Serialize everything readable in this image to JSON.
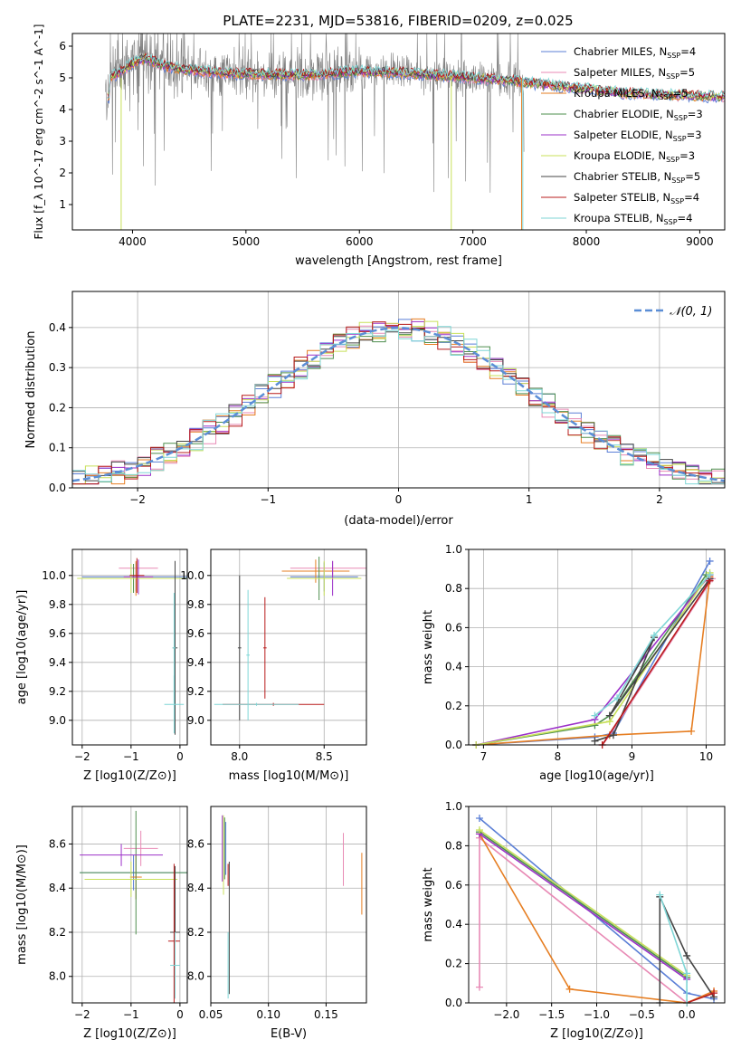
{
  "figure": {
    "title": "PLATE=2231, MJD=53816, FIBERID=0209, z=0.025"
  },
  "models": [
    {
      "name": "Chabrier MILES",
      "nssp": "4",
      "color": "#5b7fd6"
    },
    {
      "name": "Salpeter MILES",
      "nssp": "5",
      "color": "#e88ab5"
    },
    {
      "name": "Kroupa MILES",
      "nssp": "5",
      "color": "#e67e22"
    },
    {
      "name": "Chabrier ELODIE",
      "nssp": "3",
      "color": "#4e8f4e"
    },
    {
      "name": "Salpeter ELODIE",
      "nssp": "3",
      "color": "#9b30c8"
    },
    {
      "name": "Kroupa ELODIE",
      "nssp": "3",
      "color": "#c8e05a"
    },
    {
      "name": "Chabrier STELIB",
      "nssp": "5",
      "color": "#444444"
    },
    {
      "name": "Salpeter STELIB",
      "nssp": "4",
      "color": "#b81c1c"
    },
    {
      "name": "Kroupa STELIB",
      "nssp": "4",
      "color": "#7fd6d6"
    }
  ],
  "chart_data": [
    {
      "id": "spectrum",
      "type": "line",
      "xlabel": "wavelength [Angstrom, rest frame]",
      "ylabel": "Flux [f_λ 10^-17 erg cm^-2 s^-1 A^-1]",
      "xlim": [
        3470,
        9220
      ],
      "ylim": [
        0.2,
        6.4
      ],
      "xticks": [
        4000,
        5000,
        6000,
        7000,
        8000,
        9000
      ],
      "yticks": [
        1,
        2,
        3,
        4,
        5,
        6
      ],
      "data_color": "#808080",
      "data_range": [
        3760,
        7450
      ],
      "continuum": [
        [
          3800,
          5.0
        ],
        [
          3900,
          5.2
        ],
        [
          4000,
          5.45
        ],
        [
          4100,
          5.6
        ],
        [
          4200,
          5.5
        ],
        [
          4300,
          5.35
        ],
        [
          4500,
          5.25
        ],
        [
          4800,
          5.15
        ],
        [
          5200,
          5.1
        ],
        [
          5600,
          5.1
        ],
        [
          6000,
          5.2
        ],
        [
          6400,
          5.15
        ],
        [
          6800,
          5.05
        ],
        [
          7200,
          4.95
        ],
        [
          7600,
          4.8
        ],
        [
          8000,
          4.65
        ],
        [
          8400,
          4.5
        ],
        [
          8800,
          4.45
        ],
        [
          9200,
          4.4
        ]
      ],
      "legend_loc": "upper right",
      "grid": false
    },
    {
      "id": "residuals",
      "type": "histogram",
      "xlabel": "(data-model)/error",
      "ylabel": "Normed distribution",
      "xlim": [
        -2.5,
        2.5
      ],
      "ylim": [
        0,
        0.49
      ],
      "xticks": [
        -2,
        -1,
        0,
        1,
        2
      ],
      "yticks": [
        0.0,
        0.1,
        0.2,
        0.3,
        0.4
      ],
      "bin_width": 0.1,
      "reference": {
        "label": "𝒩(0, 1)",
        "mean": 0,
        "sigma": 1,
        "color": "#5b8ed6"
      },
      "legend_loc": "upper right",
      "grid": true
    },
    {
      "id": "age-vs-z",
      "type": "errorbar",
      "xlabel": "Z [log10(Z/Z⊙)]",
      "ylabel": "age [log10(age/yr)]",
      "xlim": [
        -2.2,
        0.15
      ],
      "ylim": [
        8.83,
        10.18
      ],
      "xticks": [
        -2,
        -1,
        0
      ],
      "yticks": [
        9.0,
        9.2,
        9.4,
        9.6,
        9.8,
        10.0
      ],
      "grid": true,
      "points": [
        {
          "model": 0,
          "x": -0.9,
          "y": 9.99,
          "xerr": 1.1,
          "yerr": 0.1
        },
        {
          "model": 1,
          "x": -0.85,
          "y": 10.05,
          "xerr": 0.4,
          "yerr": 0.05
        },
        {
          "model": 2,
          "x": -0.9,
          "y": 9.98,
          "xerr": 0.3,
          "yerr": 0.12
        },
        {
          "model": 3,
          "x": -0.95,
          "y": 9.98,
          "xerr": 1.15,
          "yerr": 0.1
        },
        {
          "model": 4,
          "x": -0.85,
          "y": 9.99,
          "xerr": 0.3,
          "yerr": 0.12
        },
        {
          "model": 5,
          "x": -1.0,
          "y": 9.98,
          "xerr": 1.1,
          "yerr": 0.1
        },
        {
          "model": 6,
          "x": -0.1,
          "y": 9.5,
          "xerr": 0.05,
          "yerr": 0.6
        },
        {
          "model": 7,
          "x": -0.88,
          "y": 10.0,
          "xerr": 0.15,
          "yerr": 0.12
        },
        {
          "model": 8,
          "x": -0.12,
          "y": 9.11,
          "xerr": 0.2,
          "yerr": 0.2
        },
        {
          "model": 8,
          "x": -0.12,
          "y": 9.5,
          "xerr": 0.03,
          "yerr": 0.38
        }
      ]
    },
    {
      "id": "age-vs-mass",
      "type": "errorbar",
      "xlabel": "mass [log10(M/M⊙)]",
      "ylabel": "",
      "xlim": [
        7.83,
        8.75
      ],
      "ylim": [
        8.83,
        10.18
      ],
      "xticks": [
        8.0,
        8.5
      ],
      "yticks": [
        9.0,
        9.2,
        9.4,
        9.6,
        9.8,
        10.0
      ],
      "grid": true,
      "points": [
        {
          "model": 0,
          "x": 8.5,
          "y": 9.99,
          "xerr": 0.2,
          "yerr": 0.1
        },
        {
          "model": 1,
          "x": 8.55,
          "y": 10.05,
          "xerr": 0.25,
          "yerr": 0.05
        },
        {
          "model": 2,
          "x": 8.45,
          "y": 10.03,
          "xerr": 0.2,
          "yerr": 0.08
        },
        {
          "model": 3,
          "x": 8.47,
          "y": 9.98,
          "xerr": 0.15,
          "yerr": 0.15
        },
        {
          "model": 4,
          "x": 8.55,
          "y": 9.98,
          "xerr": 0.12,
          "yerr": 0.12
        },
        {
          "model": 5,
          "x": 8.5,
          "y": 9.98,
          "xerr": 0.22,
          "yerr": 0.12
        },
        {
          "model": 6,
          "x": 8.0,
          "y": 9.5,
          "xerr": 0.01,
          "yerr": 0.5
        },
        {
          "model": 7,
          "x": 8.15,
          "y": 9.5,
          "xerr": 0.01,
          "yerr": 0.35
        },
        {
          "model": 7,
          "x": 8.2,
          "y": 9.11,
          "xerr": 0.3,
          "yerr": 0.01
        },
        {
          "model": 8,
          "x": 8.05,
          "y": 9.45,
          "xerr": 0.01,
          "yerr": 0.45
        },
        {
          "model": 8,
          "x": 8.1,
          "y": 9.11,
          "xerr": 0.25,
          "yerr": 0.01
        }
      ]
    },
    {
      "id": "weight-vs-age",
      "type": "line",
      "xlabel": "age [log10(age/yr)]",
      "ylabel": "mass weight",
      "xlim": [
        6.8,
        10.25
      ],
      "ylim": [
        0,
        1.0
      ],
      "xticks": [
        7,
        8,
        9,
        10
      ],
      "yticks": [
        0.0,
        0.2,
        0.4,
        0.6,
        0.8,
        1.0
      ],
      "grid": true,
      "series": [
        {
          "model": 0,
          "x": [
            6.9,
            8.5,
            8.75,
            10.05
          ],
          "y": [
            0.0,
            0.04,
            0.06,
            0.94
          ]
        },
        {
          "model": 1,
          "x": [
            8.6,
            8.7,
            10.08
          ],
          "y": [
            0.0,
            0.05,
            0.85
          ]
        },
        {
          "model": 2,
          "x": [
            6.9,
            8.7,
            9.8,
            10.05
          ],
          "y": [
            0.0,
            0.05,
            0.07,
            0.86
          ]
        },
        {
          "model": 3,
          "x": [
            6.9,
            8.5,
            8.7,
            10.0
          ],
          "y": [
            0.0,
            0.1,
            0.15,
            0.87
          ]
        },
        {
          "model": 4,
          "x": [
            6.9,
            8.5,
            10.05
          ],
          "y": [
            0.0,
            0.13,
            0.87
          ]
        },
        {
          "model": 5,
          "x": [
            6.9,
            8.7,
            10.05
          ],
          "y": [
            0.0,
            0.12,
            0.88
          ]
        },
        {
          "model": 6,
          "x": [
            8.5,
            8.75,
            9.3,
            8.7,
            10.05
          ],
          "y": [
            0.02,
            0.05,
            0.55,
            0.15,
            0.85
          ]
        },
        {
          "model": 7,
          "x": [
            8.6,
            10.05
          ],
          "y": [
            0.0,
            0.84
          ]
        },
        {
          "model": 8,
          "x": [
            8.5,
            8.8,
            9.3,
            10.05
          ],
          "y": [
            0.15,
            0.24,
            0.56,
            0.87
          ]
        }
      ]
    },
    {
      "id": "mass-vs-z",
      "type": "errorbar",
      "xlabel": "Z [log10(Z/Z⊙)]",
      "ylabel": "mass [log10(M/M⊙)]",
      "xlim": [
        -2.2,
        0.15
      ],
      "ylim": [
        7.88,
        8.77
      ],
      "xticks": [
        -2,
        -1,
        0
      ],
      "yticks": [
        8.0,
        8.2,
        8.4,
        8.6
      ],
      "grid": true,
      "points": [
        {
          "model": 0,
          "x": -0.95,
          "y": 8.47,
          "xerr": 1.1,
          "yerr": 0.08
        },
        {
          "model": 1,
          "x": -0.8,
          "y": 8.58,
          "xerr": 0.35,
          "yerr": 0.08
        },
        {
          "model": 2,
          "x": -0.9,
          "y": 8.45,
          "xerr": 0.12,
          "yerr": 0.1
        },
        {
          "model": 3,
          "x": -0.9,
          "y": 8.47,
          "xerr": 1.15,
          "yerr": 0.28
        },
        {
          "model": 4,
          "x": -1.2,
          "y": 8.55,
          "xerr": 0.85,
          "yerr": 0.05
        },
        {
          "model": 5,
          "x": -1.0,
          "y": 8.44,
          "xerr": 0.95,
          "yerr": 0.08
        },
        {
          "model": 6,
          "x": -0.1,
          "y": 8.2,
          "xerr": 0.1,
          "yerr": 0.3
        },
        {
          "model": 7,
          "x": -0.12,
          "y": 8.16,
          "xerr": 0.12,
          "yerr": 0.35
        },
        {
          "model": 8,
          "x": -0.1,
          "y": 8.05,
          "xerr": 0.1,
          "yerr": 0.15
        }
      ]
    },
    {
      "id": "mass-vs-ebv",
      "type": "errorbar",
      "xlabel": "E(B-V)",
      "ylabel": "",
      "xlim": [
        0.05,
        0.185
      ],
      "ylim": [
        7.88,
        8.77
      ],
      "xticks": [
        0.05,
        0.1,
        0.15
      ],
      "yticks": [
        8.0,
        8.2,
        8.4,
        8.6
      ],
      "grid": true,
      "points": [
        {
          "model": 0,
          "x": 0.063,
          "y": 8.58,
          "xerr": 0,
          "yerr": 0.12
        },
        {
          "model": 1,
          "x": 0.165,
          "y": 8.53,
          "xerr": 0,
          "yerr": 0.12
        },
        {
          "model": 2,
          "x": 0.181,
          "y": 8.42,
          "xerr": 0,
          "yerr": 0.14
        },
        {
          "model": 3,
          "x": 0.062,
          "y": 8.58,
          "xerr": 0,
          "yerr": 0.14
        },
        {
          "model": 4,
          "x": 0.06,
          "y": 8.58,
          "xerr": 0,
          "yerr": 0.15
        },
        {
          "model": 5,
          "x": 0.061,
          "y": 8.55,
          "xerr": 0,
          "yerr": 0.18
        },
        {
          "model": 6,
          "x": 0.066,
          "y": 8.22,
          "xerr": 0,
          "yerr": 0.3
        },
        {
          "model": 7,
          "x": 0.065,
          "y": 8.46,
          "xerr": 0,
          "yerr": 0.05
        },
        {
          "model": 8,
          "x": 0.065,
          "y": 8.05,
          "xerr": 0,
          "yerr": 0.15
        }
      ]
    },
    {
      "id": "weight-vs-z",
      "type": "line",
      "xlabel": "Z [log10(Z/Z⊙)]",
      "ylabel": "mass weight",
      "xlim": [
        -2.42,
        0.42
      ],
      "ylim": [
        0,
        1.0
      ],
      "xticks": [
        -2.0,
        -1.5,
        -1.0,
        -0.5,
        0.0
      ],
      "yticks": [
        0.0,
        0.2,
        0.4,
        0.6,
        0.8,
        1.0
      ],
      "grid": true,
      "series": [
        {
          "model": 0,
          "x": [
            -2.3,
            0.0,
            0.3
          ],
          "y": [
            0.94,
            0.05,
            0.02
          ]
        },
        {
          "model": 1,
          "x": [
            -2.3,
            -2.3,
            0.0,
            0.3
          ],
          "y": [
            0.08,
            0.84,
            0.0,
            0.06
          ]
        },
        {
          "model": 2,
          "x": [
            -2.3,
            -1.3,
            0.0,
            0.3
          ],
          "y": [
            0.86,
            0.07,
            0.0,
            0.06
          ]
        },
        {
          "model": 3,
          "x": [
            -2.3,
            0.0
          ],
          "y": [
            0.87,
            0.13
          ]
        },
        {
          "model": 4,
          "x": [
            -2.3,
            0.0
          ],
          "y": [
            0.86,
            0.12
          ]
        },
        {
          "model": 5,
          "x": [
            -2.3,
            0.0
          ],
          "y": [
            0.88,
            0.14
          ]
        },
        {
          "model": 6,
          "x": [
            -0.3,
            -0.3,
            0.0,
            0.3
          ],
          "y": [
            0.0,
            0.54,
            0.24,
            0.03
          ]
        },
        {
          "model": 7,
          "x": [
            0.0,
            0.3
          ],
          "y": [
            0.0,
            0.05
          ]
        },
        {
          "model": 8,
          "x": [
            -0.3,
            0.0,
            0.0
          ],
          "y": [
            0.55,
            0.15,
            0.0
          ]
        }
      ]
    }
  ]
}
